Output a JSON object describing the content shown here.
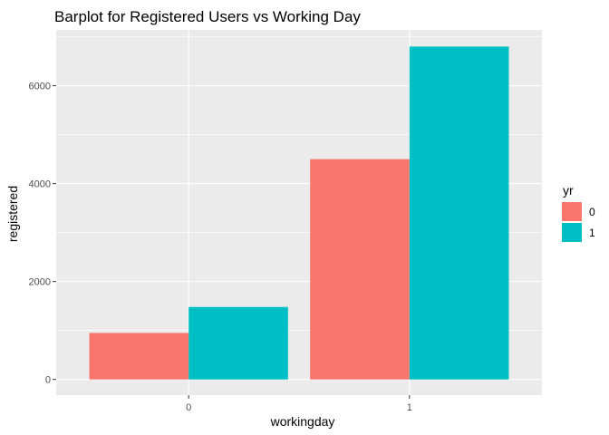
{
  "chart_data": {
    "type": "bar",
    "title": "Barplot for Registered Users vs Working Day",
    "xlabel": "workingday",
    "ylabel": "registered",
    "categories": [
      "0",
      "1"
    ],
    "series": [
      {
        "name": "0",
        "values": [
          950,
          4500
        ],
        "color": "#F8766D"
      },
      {
        "name": "1",
        "values": [
          1480,
          6800
        ],
        "color": "#00BFC4"
      }
    ],
    "ylim": [
      -320,
      7140
    ],
    "yticks": [
      0,
      2000,
      4000,
      6000
    ],
    "ytick_labels": [
      "0",
      "2000",
      "4000",
      "6000"
    ],
    "legend": {
      "title": "yr",
      "position": "right"
    },
    "grid": true,
    "panel_background": "#EBEBEB",
    "grid_color": "#FFFFFF"
  }
}
